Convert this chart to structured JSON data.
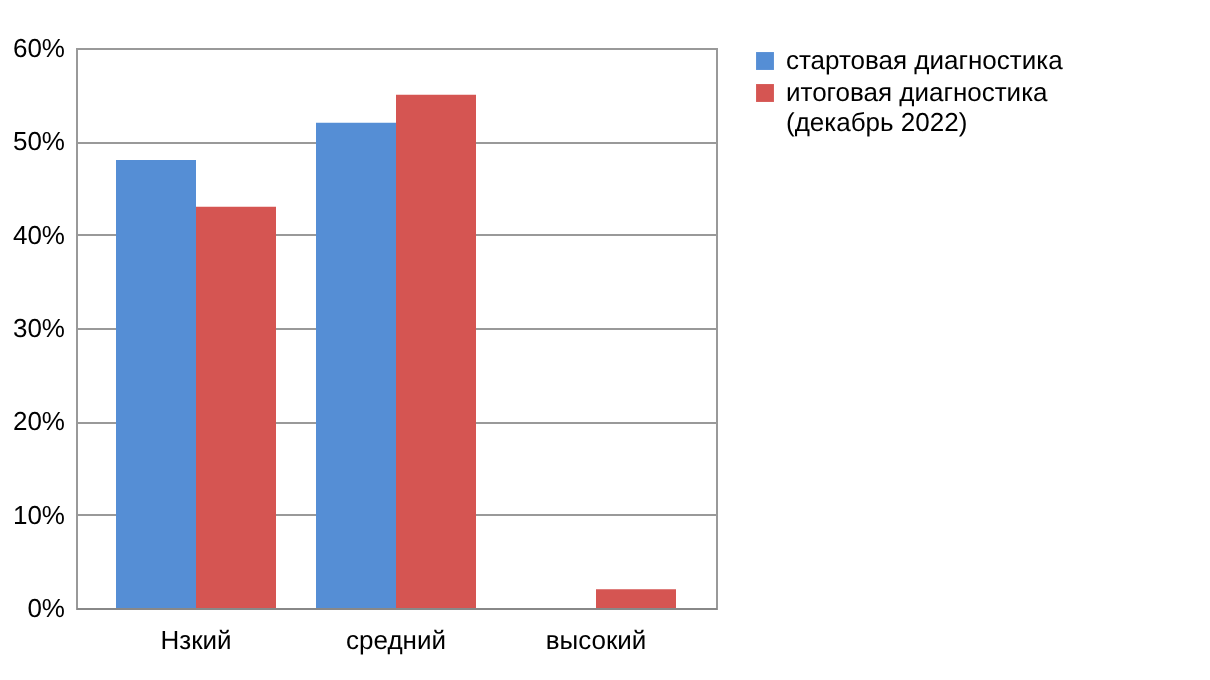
{
  "chart_data": {
    "type": "bar",
    "categories": [
      "Нзкий",
      "средний",
      "высокий"
    ],
    "series": [
      {
        "name": "стартовая диагностика",
        "color": "#558ed5",
        "values": [
          0.48,
          0.52,
          0
        ]
      },
      {
        "name": "итоговая диагностика (декабрь 2022)",
        "color": "#d55552",
        "values": [
          0.43,
          0.55,
          0.02
        ]
      }
    ],
    "ylim": [
      0,
      0.6
    ],
    "yticks": [
      {
        "value": 0,
        "label": "0%"
      },
      {
        "value": 0.1,
        "label": "10%"
      },
      {
        "value": 0.2,
        "label": "20%"
      },
      {
        "value": 0.3,
        "label": "30%"
      },
      {
        "value": 0.4,
        "label": "40%"
      },
      {
        "value": 0.5,
        "label": "50%"
      },
      {
        "value": 0.6,
        "label": "60%"
      }
    ],
    "grid": true,
    "legend": "right"
  }
}
